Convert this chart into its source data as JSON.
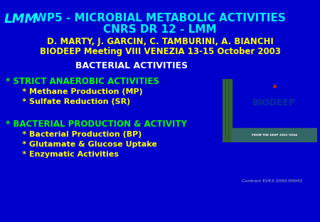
{
  "bg_color": "#0000CC",
  "title_line1": "WP5 - MICROBIAL METABOLIC ACTIVITIES",
  "title_line2": "CNRS DR 12 - LMM",
  "title_color": "#00EEFF",
  "subtitle1": "D. MARTY, J. GARCIN, C. TAMBURINI, A. BIANCHI",
  "subtitle2": "BIODEEP Meeting VIII VENEZIA 13-15 October 2003",
  "subtitle_color": "#FFFF00",
  "section_header": "BACTERIAL ACTIVITIES",
  "section_header_color": "#FFFFFF",
  "green_color": "#00FF00",
  "yellow_color": "#FFFF00",
  "bullet1_header": "* STRICT ANAEROBIC ACTIVITIES",
  "bullet1_sub1": "      * Methane Production (MP)",
  "bullet1_sub2": "      * Sulfate Reduction (SR)",
  "bullet2_header": "* BACTERIAL PRODUCTION & ACTIVITY",
  "bullet2_sub1": "      * Bacterial Production (BP)",
  "bullet2_sub2": "      * Glutamate & Glucose Uptake",
  "bullet2_sub3": "      * Enzymatic Activities",
  "contract_text": "Contract EVK3-2000-00042",
  "logo_color": "#00FFFF",
  "figsize": [
    4.5,
    3.12
  ],
  "dpi": 100
}
